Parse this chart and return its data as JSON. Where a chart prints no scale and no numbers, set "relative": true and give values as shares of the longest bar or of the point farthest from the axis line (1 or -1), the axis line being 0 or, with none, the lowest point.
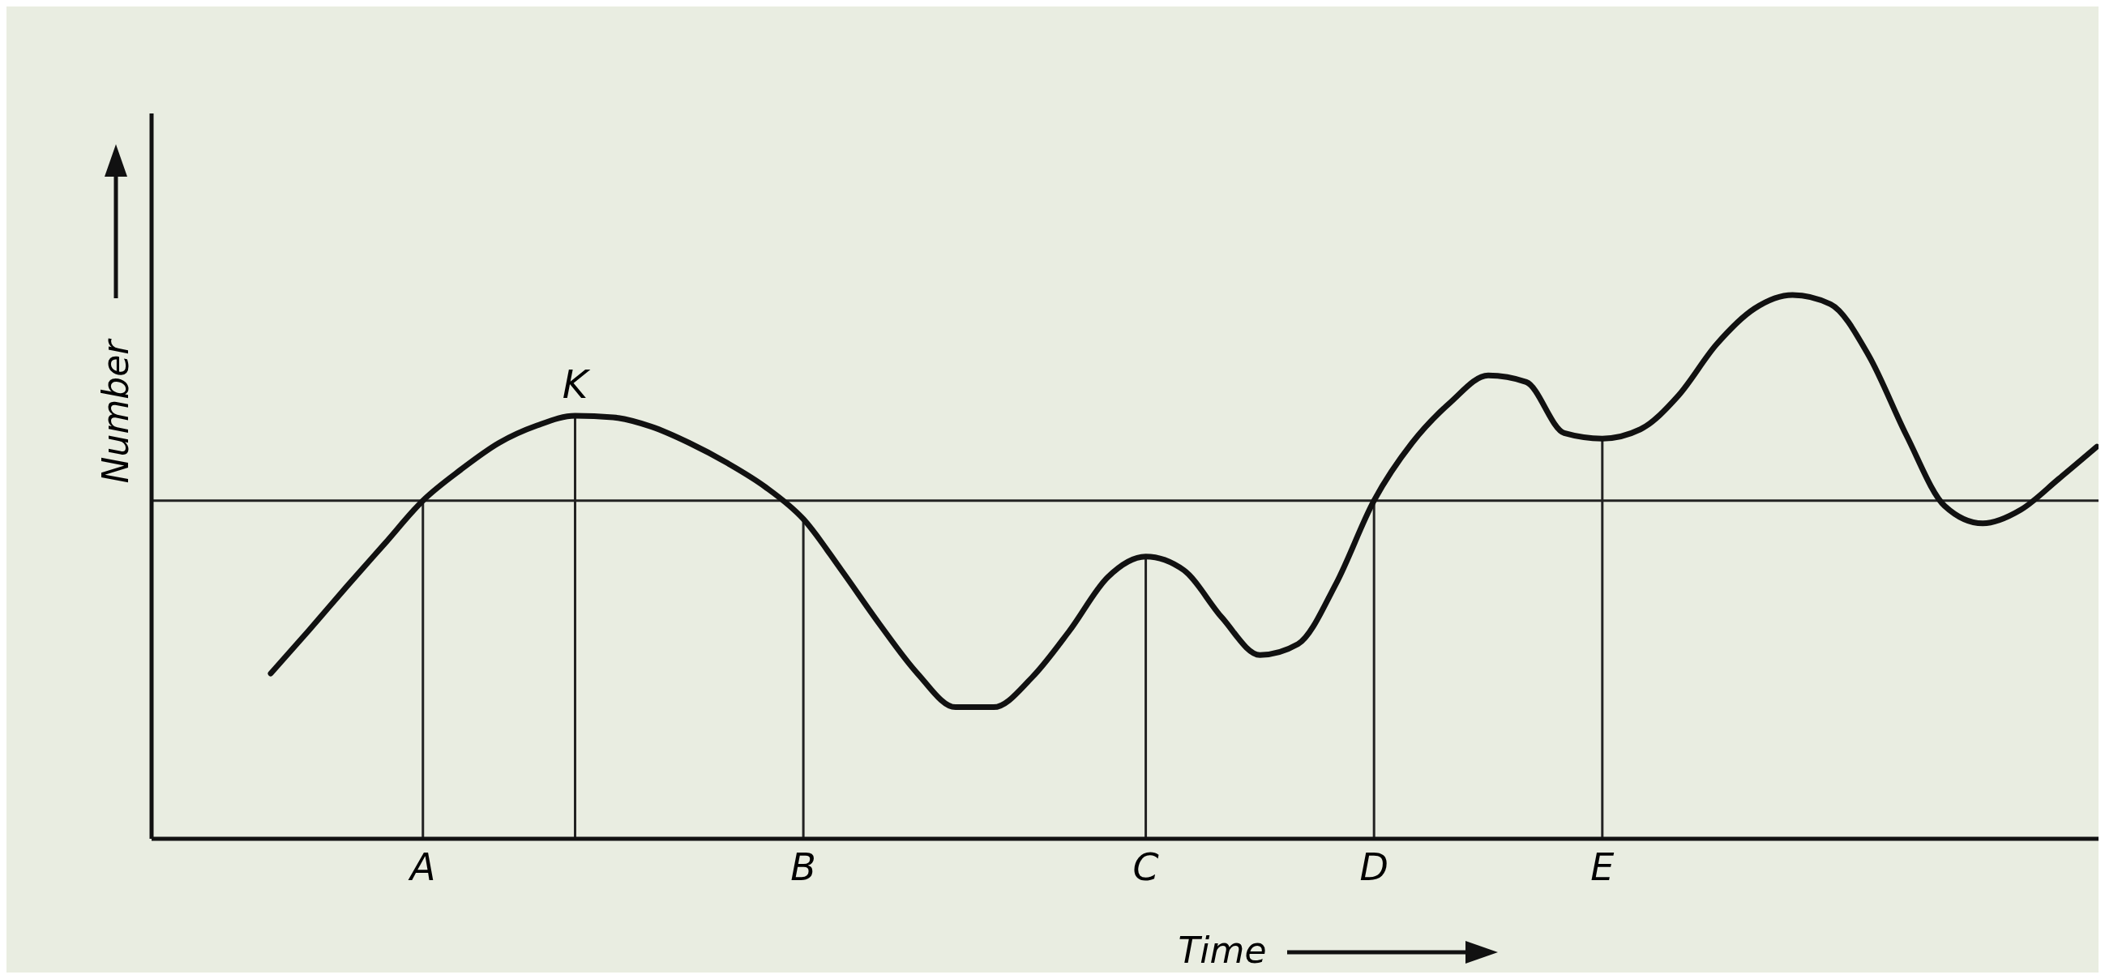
{
  "chart_data": {
    "type": "line",
    "relative": true,
    "xlabel": "Time",
    "ylabel": "Number",
    "legend": false,
    "grid": "x",
    "marker": "none",
    "line_style": "solid",
    "categories": [
      null,
      null,
      null,
      null,
      "A",
      null,
      null,
      null,
      null,
      null,
      null,
      null,
      null,
      null,
      "B",
      null,
      null,
      null,
      null,
      null,
      null,
      null,
      null,
      "C",
      null,
      null,
      null,
      null,
      null,
      "D",
      null,
      null,
      null,
      null,
      null,
      "E",
      null,
      null,
      null,
      null,
      null,
      null,
      null,
      null,
      null,
      null,
      null,
      null,
      null
    ],
    "series": [
      {
        "color": "#111111",
        "values": [
          0.304,
          0.383,
          0.464,
          0.543,
          0.622,
          0.679,
          0.728,
          0.76,
          0.778,
          0.775,
          0.758,
          0.728,
          0.691,
          0.647,
          0.588,
          0.494,
          0.395,
          0.304,
          0.242,
          0.242,
          0.296,
          0.383,
          0.481,
          0.519,
          0.494,
          0.407,
          0.338,
          0.358,
          0.469,
          0.622,
          0.728,
          0.802,
          0.852,
          0.84,
          0.746,
          0.736,
          0.753,
          0.815,
          0.909,
          0.975,
          1,
          0.983,
          0.889,
          0.741,
          0.612,
          0.58,
          0.605,
          0.662,
          0.721
        ]
      }
    ],
    "annotations": [
      "K"
    ],
    "ref_lines": [
      {
        "axis": "y",
        "value": 0.622
      }
    ]
  }
}
